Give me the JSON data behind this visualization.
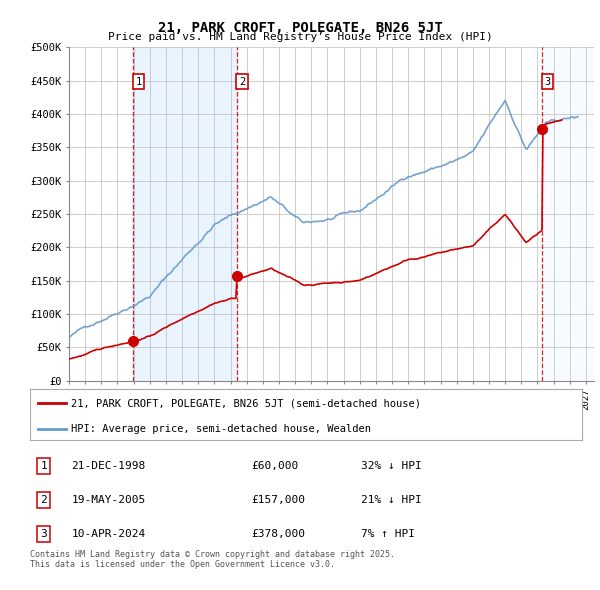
{
  "title": "21, PARK CROFT, POLEGATE, BN26 5JT",
  "subtitle": "Price paid vs. HM Land Registry’s House Price Index (HPI)",
  "ylim": [
    0,
    500000
  ],
  "yticks": [
    0,
    50000,
    100000,
    150000,
    200000,
    250000,
    300000,
    350000,
    400000,
    450000,
    500000
  ],
  "ytick_labels": [
    "£0",
    "£50K",
    "£100K",
    "£150K",
    "£200K",
    "£250K",
    "£300K",
    "£350K",
    "£400K",
    "£450K",
    "£500K"
  ],
  "xlim_min": 1995.0,
  "xlim_max": 2027.5,
  "xtick_years": [
    1995,
    1996,
    1997,
    1998,
    1999,
    2000,
    2001,
    2002,
    2003,
    2004,
    2005,
    2006,
    2007,
    2008,
    2009,
    2010,
    2011,
    2012,
    2013,
    2014,
    2015,
    2016,
    2017,
    2018,
    2019,
    2020,
    2021,
    2022,
    2023,
    2024,
    2025,
    2026,
    2027
  ],
  "transaction_dates": [
    1998.97,
    2005.38,
    2024.28
  ],
  "transaction_prices": [
    60000,
    157000,
    378000
  ],
  "transaction_labels": [
    "1",
    "2",
    "3"
  ],
  "legend_label_red": "21, PARK CROFT, POLEGATE, BN26 5JT (semi-detached house)",
  "legend_label_blue": "HPI: Average price, semi-detached house, Wealden",
  "table_rows": [
    [
      "1",
      "21-DEC-1998",
      "£60,000",
      "32% ↓ HPI"
    ],
    [
      "2",
      "19-MAY-2005",
      "£157,000",
      "21% ↓ HPI"
    ],
    [
      "3",
      "10-APR-2024",
      "£378,000",
      "7% ↑ HPI"
    ]
  ],
  "footnote": "Contains HM Land Registry data © Crown copyright and database right 2025.\nThis data is licensed under the Open Government Licence v3.0.",
  "red_color": "#cc0000",
  "blue_color": "#6699cc",
  "shade_color": "#ddeeff",
  "background_color": "#ffffff",
  "grid_color": "#bbbbbb"
}
